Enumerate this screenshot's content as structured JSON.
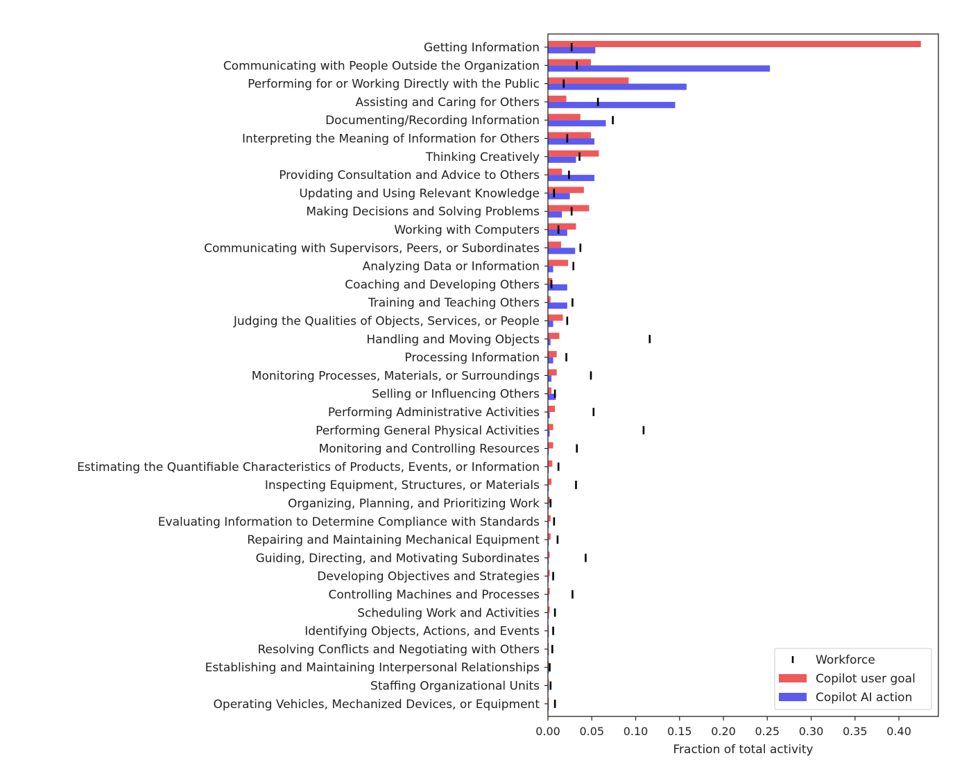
{
  "chart_data": {
    "type": "bar",
    "orientation": "horizontal",
    "title": "",
    "xlabel": "Fraction of total activity",
    "ylabel": "",
    "xlim": [
      0,
      0.445
    ],
    "xticks": [
      "0.00",
      "0.05",
      "0.10",
      "0.15",
      "0.20",
      "0.25",
      "0.30",
      "0.35",
      "0.40"
    ],
    "grid": false,
    "legend_position": "bottom-right",
    "categories": [
      "Getting Information",
      "Communicating with People Outside the Organization",
      "Performing for or Working Directly with the Public",
      "Assisting and Caring for Others",
      "Documenting/Recording Information",
      "Interpreting the Meaning of Information for Others",
      "Thinking Creatively",
      "Providing Consultation and Advice to Others",
      "Updating and Using Relevant Knowledge",
      "Making Decisions and Solving Problems",
      "Working with Computers",
      "Communicating with Supervisors, Peers, or Subordinates",
      "Analyzing Data or Information",
      "Coaching and Developing Others",
      "Training and Teaching Others",
      "Judging the Qualities of Objects, Services, or People",
      "Handling and Moving Objects",
      "Processing Information",
      "Monitoring Processes, Materials, or Surroundings",
      "Selling or Influencing Others",
      "Performing Administrative Activities",
      "Performing General Physical Activities",
      "Monitoring and Controlling Resources",
      "Estimating the Quantifiable Characteristics of Products, Events, or Information",
      "Inspecting Equipment, Structures, or Materials",
      "Organizing, Planning, and Prioritizing Work",
      "Evaluating Information to Determine Compliance with Standards",
      "Repairing and Maintaining Mechanical Equipment",
      "Guiding, Directing, and Motivating Subordinates",
      "Developing Objectives and Strategies",
      "Controlling Machines and Processes",
      "Scheduling Work and Activities",
      "Identifying Objects, Actions, and Events",
      "Resolving Conflicts and Negotiating with Others",
      "Establishing and Maintaining Interpersonal Relationships",
      "Staffing Organizational Units",
      "Operating Vehicles, Mechanized Devices, or Equipment"
    ],
    "series": [
      {
        "name": "Copilot user goal",
        "color": "#f0595a",
        "values": [
          0.425,
          0.049,
          0.092,
          0.021,
          0.037,
          0.049,
          0.058,
          0.016,
          0.041,
          0.047,
          0.032,
          0.015,
          0.023,
          0.005,
          0.003,
          0.017,
          0.013,
          0.01,
          0.01,
          0.004,
          0.008,
          0.006,
          0.006,
          0.005,
          0.004,
          0.002,
          0.003,
          0.003,
          0.002,
          0.002,
          0.002,
          0.002,
          0.001,
          0.001,
          0.001,
          0.001,
          0.001
        ]
      },
      {
        "name": "Copilot AI action",
        "color": "#5b5bf0",
        "values": [
          0.054,
          0.253,
          0.158,
          0.145,
          0.066,
          0.053,
          0.032,
          0.053,
          0.025,
          0.016,
          0.022,
          0.031,
          0.006,
          0.022,
          0.022,
          0.006,
          0.003,
          0.006,
          0.004,
          0.009,
          0.002,
          0.002,
          0.001,
          0.001,
          0.001,
          0.001,
          0.001,
          0.001,
          0.001,
          0.001,
          0.001,
          0.001,
          0.001,
          0.001,
          0.001,
          0.001,
          0.001
        ]
      },
      {
        "name": "Workforce",
        "color": "#000000",
        "marker": "vertical-tick",
        "values": [
          0.027,
          0.033,
          0.018,
          0.057,
          0.074,
          0.022,
          0.036,
          0.024,
          0.007,
          0.027,
          0.012,
          0.037,
          0.029,
          0.004,
          0.028,
          0.022,
          0.116,
          0.021,
          0.049,
          0.008,
          0.052,
          0.109,
          0.033,
          0.012,
          0.032,
          0.003,
          0.007,
          0.011,
          0.043,
          0.006,
          0.028,
          0.008,
          0.006,
          0.005,
          0.002,
          0.003,
          0.008
        ]
      }
    ],
    "legend": [
      "Workforce",
      "Copilot user goal",
      "Copilot AI action"
    ]
  }
}
